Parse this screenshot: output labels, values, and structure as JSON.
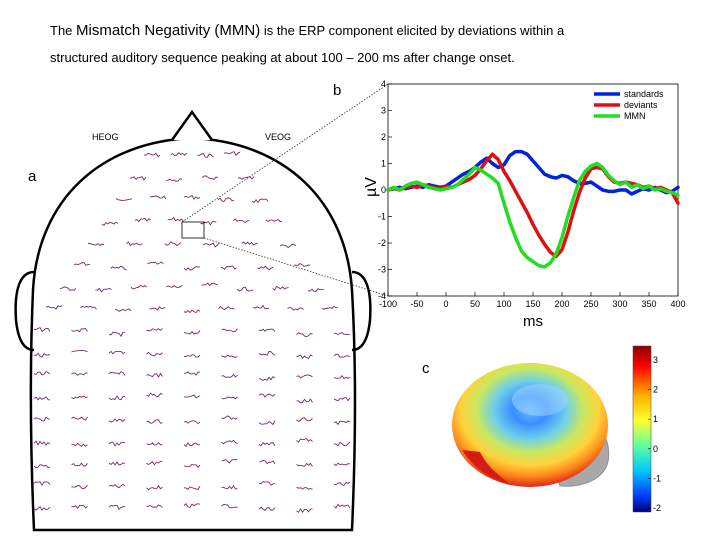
{
  "intro": {
    "line1_prefix": "The ",
    "line1_term": "Mismatch Negativity (MMN)",
    "line1_rest": " is the ERP component elicited by deviations within a",
    "line2": "structured auditory sequence peaking at  about 100 – 200 ms after change onset."
  },
  "panels": {
    "a": "a",
    "b": "b",
    "c": "c"
  },
  "head": {
    "heog_label": "HEOG",
    "veog_label": "VEOG"
  },
  "colors": {
    "standards": "#0022dd",
    "deviants": "#dd1111",
    "mmn": "#22dd22",
    "trace": "#7a2a6a"
  },
  "chart_data": [
    {
      "type": "line",
      "title": "",
      "xlabel": "ms",
      "ylabel": "µV",
      "xlim": [
        -100,
        400
      ],
      "ylim": [
        -4,
        4
      ],
      "xticks": [
        -100,
        -50,
        0,
        50,
        100,
        150,
        200,
        250,
        300,
        350,
        400
      ],
      "yticks": [
        4,
        3,
        2,
        1,
        0,
        -1,
        -2,
        -3,
        -4
      ],
      "grid": false,
      "legend_position": "top-right",
      "x": [
        -100,
        -90,
        -80,
        -70,
        -60,
        -50,
        -40,
        -30,
        -20,
        -10,
        0,
        10,
        20,
        30,
        40,
        50,
        60,
        70,
        80,
        90,
        100,
        110,
        120,
        130,
        140,
        150,
        160,
        170,
        180,
        190,
        200,
        210,
        220,
        230,
        240,
        250,
        260,
        270,
        280,
        290,
        300,
        310,
        320,
        330,
        340,
        350,
        360,
        370,
        380,
        390,
        400
      ],
      "series": [
        {
          "name": "standards",
          "values": [
            0.0,
            0.05,
            0.1,
            0.05,
            0.1,
            0.15,
            0.1,
            0.2,
            0.15,
            0.1,
            0.15,
            0.3,
            0.45,
            0.6,
            0.7,
            0.85,
            1.05,
            1.2,
            1.0,
            0.85,
            0.95,
            1.3,
            1.45,
            1.45,
            1.35,
            1.1,
            0.85,
            0.6,
            0.5,
            0.45,
            0.55,
            0.5,
            0.35,
            0.25,
            0.25,
            0.3,
            0.15,
            0.0,
            -0.05,
            -0.05,
            0.0,
            0.0,
            -0.15,
            -0.05,
            0.05,
            0.0,
            0.1,
            0.0,
            -0.1,
            -0.05,
            0.1
          ]
        },
        {
          "name": "deviants",
          "values": [
            0.0,
            0.05,
            0.0,
            0.1,
            0.15,
            0.1,
            0.2,
            0.15,
            0.1,
            0.05,
            0.15,
            0.1,
            0.2,
            0.3,
            0.4,
            0.55,
            0.8,
            1.1,
            1.35,
            1.15,
            0.7,
            0.35,
            -0.05,
            -0.45,
            -0.85,
            -1.3,
            -1.7,
            -2.05,
            -2.35,
            -2.5,
            -2.25,
            -1.6,
            -0.8,
            -0.1,
            0.45,
            0.8,
            0.85,
            0.8,
            0.5,
            0.3,
            0.25,
            0.3,
            0.25,
            0.2,
            0.1,
            0.15,
            0.05,
            0.1,
            0.0,
            -0.1,
            -0.5
          ]
        },
        {
          "name": "MMN",
          "values": [
            0.0,
            0.1,
            0.0,
            0.15,
            0.25,
            0.3,
            0.2,
            0.1,
            0.05,
            0.0,
            0.05,
            0.1,
            0.2,
            0.4,
            0.6,
            0.85,
            0.75,
            0.6,
            0.45,
            0.25,
            -0.5,
            -1.2,
            -1.8,
            -2.3,
            -2.55,
            -2.7,
            -2.85,
            -2.9,
            -2.75,
            -2.4,
            -1.8,
            -1.0,
            -0.3,
            0.35,
            0.7,
            0.9,
            1.0,
            0.85,
            0.55,
            0.35,
            0.2,
            0.3,
            0.1,
            0.2,
            0.05,
            0.15,
            0.0,
            0.05,
            -0.05,
            -0.1,
            -0.2
          ]
        }
      ]
    },
    {
      "type": "heatmap",
      "title": "",
      "colorbar_ticks": [
        3,
        2,
        1,
        0,
        -1,
        -2
      ],
      "colormap": "jet"
    }
  ]
}
